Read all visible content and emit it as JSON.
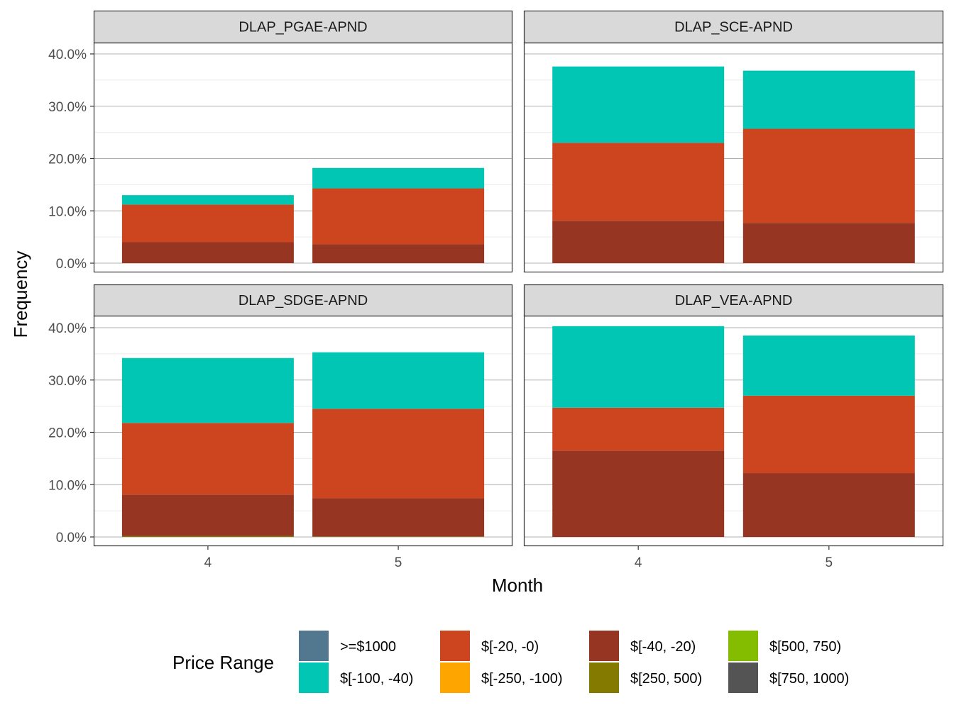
{
  "chart_data": {
    "type": "bar",
    "stacked": true,
    "xlabel": "Month",
    "ylabel": "Frequency",
    "categories": [
      "4",
      "5"
    ],
    "ylim": [
      0,
      0.4
    ],
    "y_ticks": [
      0,
      0.1,
      0.2,
      0.3,
      0.4
    ],
    "y_tick_labels": [
      "0.0%",
      "10.0%",
      "20.0%",
      "30.0%",
      "40.0%"
    ],
    "facet_grid": [
      2,
      2
    ],
    "panels": [
      {
        "name": "DLAP_PGAE-APND",
        "series": [
          {
            "name": "$[-40, -20)",
            "values": [
              0.04,
              0.036
            ]
          },
          {
            "name": "$[-20, -0)",
            "values": [
              0.072,
              0.107
            ]
          },
          {
            "name": "$[-100, -40)",
            "values": [
              0.018,
              0.039
            ]
          }
        ]
      },
      {
        "name": "DLAP_SCE-APND",
        "series": [
          {
            "name": "$[-40, -20)",
            "values": [
              0.081,
              0.077
            ]
          },
          {
            "name": "$[-20, -0)",
            "values": [
              0.149,
              0.18
            ]
          },
          {
            "name": "$[-100, -40)",
            "values": [
              0.146,
              0.111
            ]
          }
        ]
      },
      {
        "name": "DLAP_SDGE-APND",
        "series": [
          {
            "name": "$[250, 500)",
            "values": [
              0.002,
              0.001
            ]
          },
          {
            "name": "$[-40, -20)",
            "values": [
              0.079,
              0.073
            ]
          },
          {
            "name": "$[-20, -0)",
            "values": [
              0.137,
              0.171
            ]
          },
          {
            "name": "$[-100, -40)",
            "values": [
              0.124,
              0.108
            ]
          }
        ]
      },
      {
        "name": "DLAP_VEA-APND",
        "series": [
          {
            "name": "$[-40, -20)",
            "values": [
              0.165,
              0.122
            ]
          },
          {
            "name": "$[-20, -0)",
            "values": [
              0.082,
              0.148
            ]
          },
          {
            "name": "$[-100, -40)",
            "values": [
              0.156,
              0.115
            ]
          }
        ]
      }
    ],
    "legend": {
      "title": "Price Range",
      "position": "bottom",
      "entries": [
        {
          "label": ">=$1000",
          "color": "#51788E"
        },
        {
          "label": "$[-100, -40)",
          "color": "#00C6B3"
        },
        {
          "label": "$[-20, -0)",
          "color": "#CD451F"
        },
        {
          "label": "$[-250, -100)",
          "color": "#FFA500"
        },
        {
          "label": "$[-40, -20)",
          "color": "#963521"
        },
        {
          "label": "$[250, 500)",
          "color": "#857A00"
        },
        {
          "label": "$[500, 750)",
          "color": "#84BC00"
        },
        {
          "label": "$[750, 1000)",
          "color": "#545454"
        }
      ]
    }
  }
}
